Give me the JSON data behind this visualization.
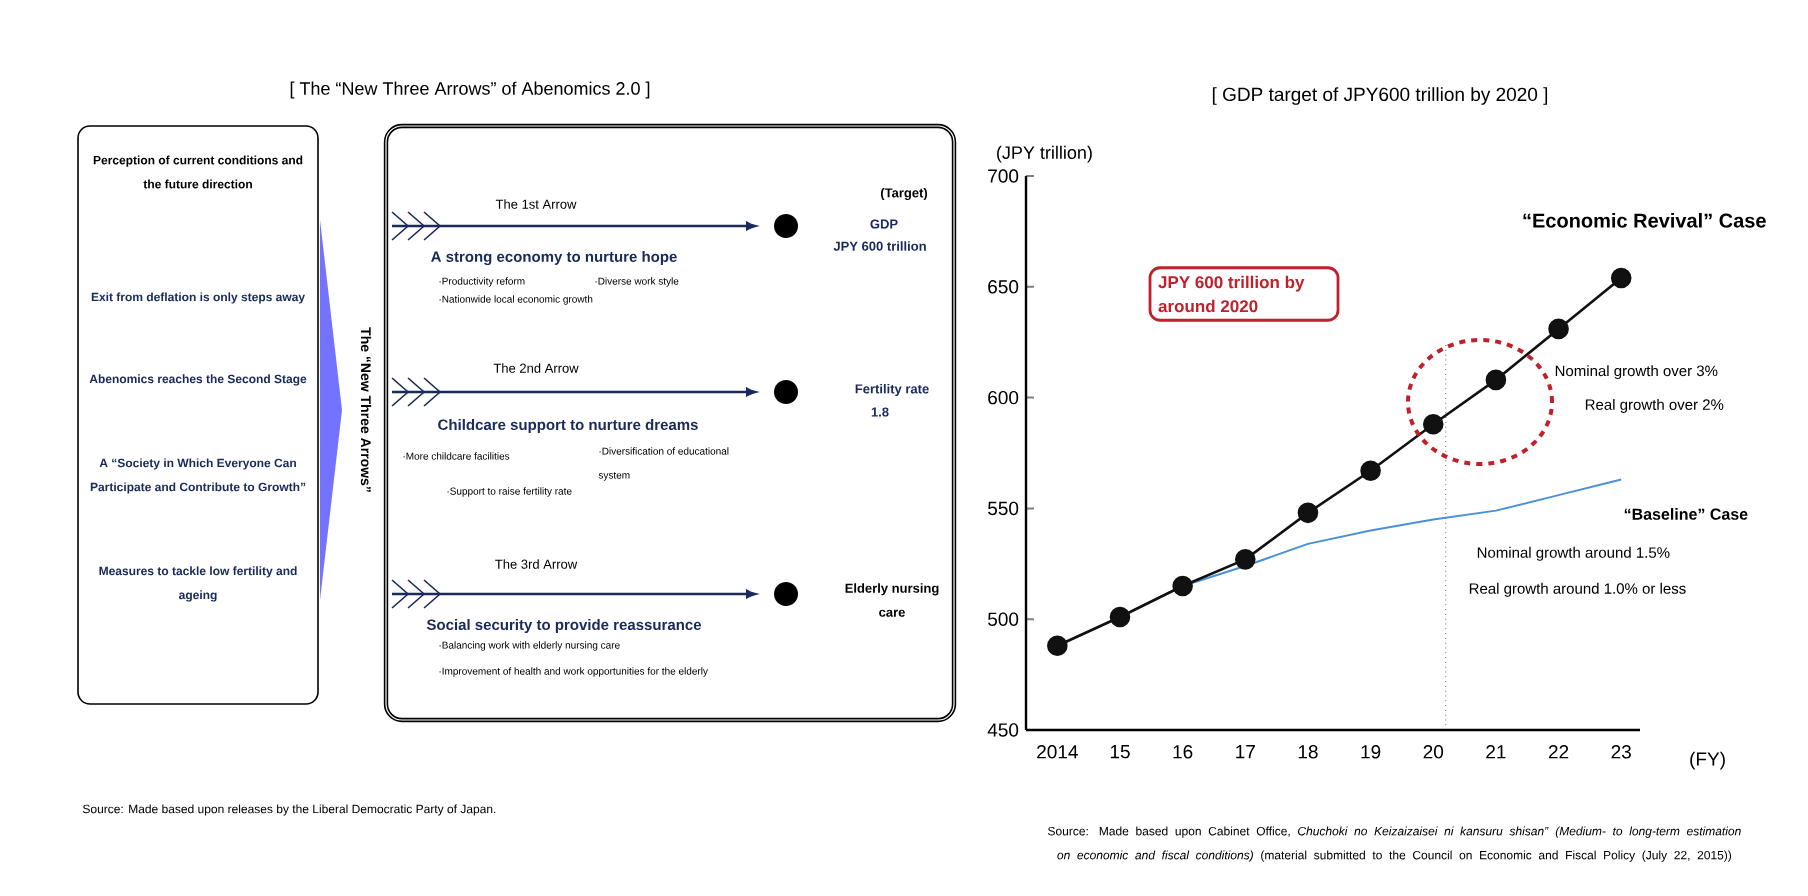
{
  "chart_data": [
    {
      "type": "other",
      "title": "[ The “New Three Arrows” of Abenomics 2.0 ]",
      "annotations": [
        "Perception of current conditions and the future direction",
        "Exit from deflation is only steps away",
        "Abenomics reaches the Second Stage",
        "A “Society in Which Everyone Can Participate and Contribute to Growth”",
        "Measures to tackle low fertility and ageing",
        "The “New Three Arrows”",
        "(Target)",
        "The 1st Arrow",
        "A strong economy to nurture hope",
        "·Productivity reform",
        "·Diverse work style",
        "·Nationwide local economic growth",
        "GDP",
        "JPY 600 trillion",
        "The 2nd Arrow",
        "Childcare support to nurture dreams",
        "·More childcare facilities",
        "·Diversification of educational system",
        "·Support to raise fertility rate",
        "Fertility rate",
        "1.8",
        "The 3rd Arrow",
        "Social security to provide reassurance",
        "·Balancing work with elderly nursing care",
        "·Improvement of health and work opportunities for the elderly",
        "Elderly nursing care",
        "Source: Made based upon releases by the Liberal Democratic Party of Japan."
      ]
    },
    {
      "type": "line",
      "title": "[ GDP target of JPY600 trillion by 2020 ]",
      "ylabel": "(JPY trillion)",
      "xlabel": "(FY)",
      "x": [
        2014,
        2015,
        2016,
        2017,
        2018,
        2019,
        2020,
        2021,
        2022,
        2023
      ],
      "series": [
        {
          "name": "“Economic Revival” Case",
          "color": "#111111",
          "marker": "circle",
          "values": [
            488,
            501,
            515,
            527,
            548,
            567,
            588,
            608,
            631,
            654
          ]
        },
        {
          "name": "“Baseline” Case",
          "color": "#4a90d9",
          "marker": "none",
          "values": [
            488,
            501,
            515,
            524,
            534,
            540,
            545,
            549,
            556,
            563
          ]
        }
      ],
      "xlim": [
        2013.5,
        2023.3
      ],
      "ylim": [
        450,
        700
      ],
      "yticks": [
        450,
        500,
        550,
        600,
        650,
        700
      ],
      "xticks": [
        2014,
        {
          "value": 2015,
          "label": "15"
        },
        {
          "value": 2016,
          "label": "16"
        },
        {
          "value": 2017,
          "label": "17"
        },
        {
          "value": 2018,
          "label": "18"
        },
        {
          "value": 2019,
          "label": "19"
        },
        {
          "value": 2020,
          "label": "20"
        },
        {
          "value": 2021,
          "label": "21"
        },
        {
          "value": 2022,
          "label": "22"
        },
        {
          "value": 2023,
          "label": "23"
        }
      ],
      "ref_lines": [
        {
          "axis": "x",
          "value": 2020.2,
          "color": "#000000",
          "line_style": "dotted"
        }
      ],
      "annotations": [
        "JPY 600 trillion by around 2020",
        "Nominal growth  over 3%",
        "Real growth over 2%",
        "Nominal growth around 1.5%",
        "Real growth around 1.0% or less",
        "Source: Made based upon Cabinet Office, *Chuchoki no Keizaizaisei ni kansuru shisan”* *(Medium- to long-term estimation on economic and fiscal conditions)* (material submitted to the Council on Economic and Fiscal Policy (July 22, 2015))"
      ]
    }
  ]
}
